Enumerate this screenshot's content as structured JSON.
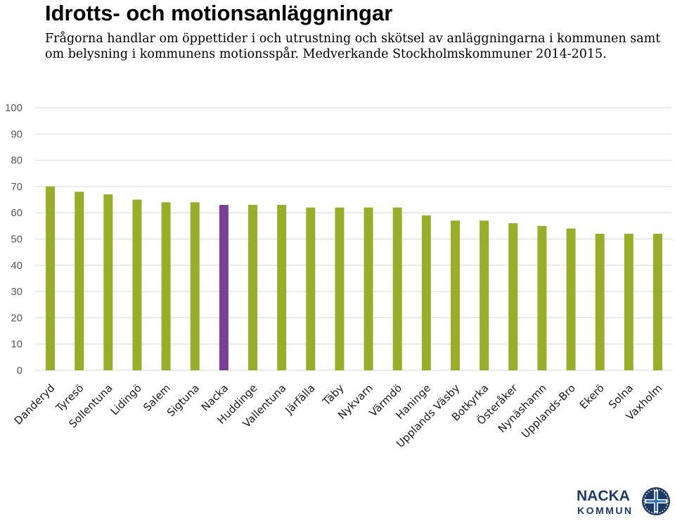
{
  "header": {
    "title": "Idrotts- och motionsanläggningar",
    "subtitle": "Frågorna handlar om öppettider i och utrustning och skötsel av anläggningarna i kommunen samt om belysning i kommunens motionsspår. Medverkande Stockholmskommuner 2014-2015."
  },
  "colors": {
    "bar": "#9aad2a",
    "highlight": "#7b4096",
    "gridline": "#d9d9d9",
    "logo": "#1f3a67",
    "logo_accent": "#2a6db3"
  },
  "logo": {
    "line1": "NACKA",
    "line2": "KOMMUN"
  },
  "chart_data": {
    "type": "bar",
    "title": "Idrotts- och motionsanläggningar",
    "categories": [
      "Danderyd",
      "Tyresö",
      "Sollentuna",
      "Lidingö",
      "Salem",
      "Sigtuna",
      "Nacka",
      "Huddinge",
      "Vallentuna",
      "Järfälla",
      "Täby",
      "Nykvarn",
      "Värmdö",
      "Haninge",
      "Upplands Väsby",
      "Botkyrka",
      "Österåker",
      "Nynäshamn",
      "Upplands-Bro",
      "Ekerö",
      "Solna",
      "Vaxholm"
    ],
    "values": [
      70,
      68,
      67,
      65,
      64,
      64,
      63,
      63,
      63,
      62,
      62,
      62,
      62,
      59,
      57,
      57,
      56,
      55,
      54,
      52,
      52,
      52
    ],
    "highlight_category": "Nacka",
    "ylim": [
      0,
      100
    ],
    "yticks": [
      0,
      10,
      20,
      30,
      40,
      50,
      60,
      70,
      80,
      90,
      100
    ],
    "xlabel": "",
    "ylabel": "",
    "grid": true,
    "legend": "none"
  }
}
